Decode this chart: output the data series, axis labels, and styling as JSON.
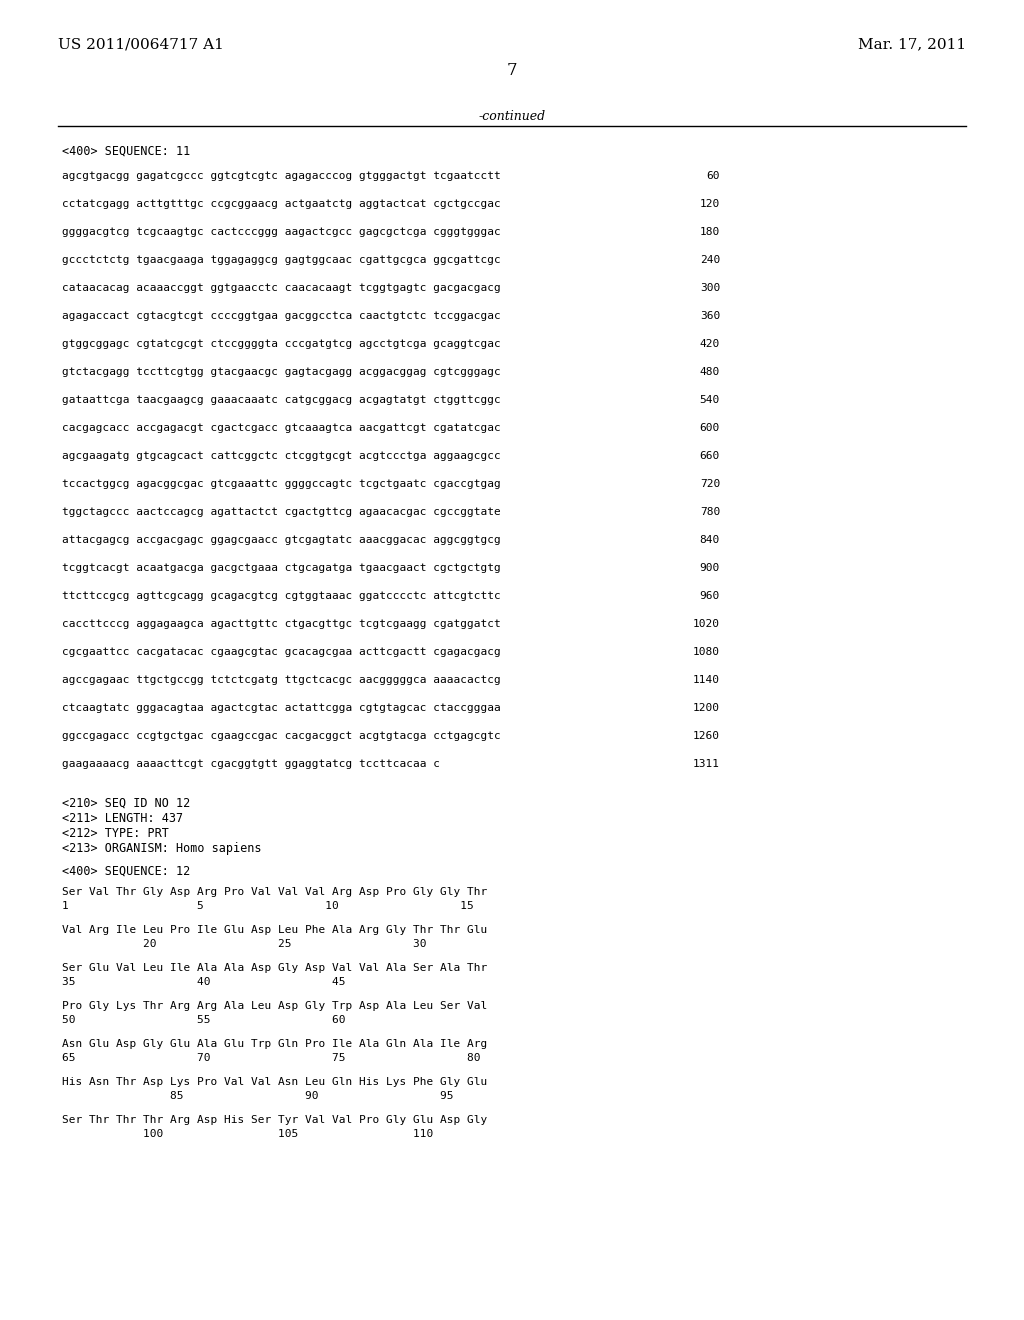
{
  "header_left": "US 2011/0064717 A1",
  "header_right": "Mar. 17, 2011",
  "page_number": "7",
  "continued_label": "-continued",
  "background_color": "#ffffff",
  "text_color": "#000000",
  "sequence_block": [
    "agcgtgacgg gagatcgccc ggtcgtcgtc agagacccog gtgggactgt tcgaatcctt    60",
    "cctatcgagg acttgtttgc ccgcggaacg actgaatctg aggtactcat cgctgccgac   120",
    "ggggacgtcg tcgcaagtgc cactcccggg aagactcgcc gagcgctcga cgggtgggac   180",
    "gccctctctg tgaacgaaga tggagaggcg gagtggcaac cgattgcgca ggcgattcgc   240",
    "cataacacag acaaaccggt ggtgaacctc caacacaagt tcggtgagtc gacgacgacg   300",
    "agagaccact cgtacgtcgt ccccggtgaa gacggcctca caactgtctc tccggacgac   360",
    "gtggcggagc cgtatcgcgt ctccggggta cccgatgtcg agcctgtcga gcaggtcgac   420",
    "gtctacgagg tccttcgtgg gtacgaacgc gagtacgagg acggacggag cgtcgggagc   480",
    "gataattcga taacgaagcg gaaacaaatc catgcggacg acgagtatgt ctggttcggc   540",
    "cacgagcacc accgagacgt cgactcgacc gtcaaagtca aacgattcgt cgatatcgac   600",
    "agcgaagatg gtgcagcact cattcggctc ctcggtgcgt acgtccctga aggaagcgcc   660",
    "tccactggcg agacggcgac gtcgaaattc ggggccagtc tcgctgaatc cgaccgtgag   720",
    "tggctagccc aactccagcg agattactct cgactgttcg agaacacgac cgccggtate   780",
    "attacgagcg accgacgagc ggagcgaacc gtcgagtatc aaacggacac aggcggtgcg   840",
    "tcggtcacgt acaatgacga gacgctgaaa ctgcagatga tgaacgaact cgctgctgtg   900",
    "ttcttccgcg agttcgcagg gcagacgtcg cgtggtaaac ggatcccctc attcgtcttc   960",
    "caccttcccg aggagaagca agacttgttc ctgacgttgc tcgtcgaagg cgatggatct  1020",
    "cgcgaattcc cacgatacac cgaagcgtac gcacagcgaa acttcgactt cgagacgacg  1080",
    "agccgagaac ttgctgccgg tctctcgatg ttgctcacgc aacgggggca aaaacactcg  1140",
    "ctcaagtatc gggacagtaa agactcgtac actattcgga cgtgtagcac ctaccgggaa  1200",
    "ggccgagacc ccgtgctgac cgaagccgac cacgacggct acgtgtacga cctgagcgtc  1260",
    "gaagaaaacg aaaacttcgt cgacggtgtt ggaggtatcg tccttcacaa c            1311"
  ],
  "seq12_info": [
    "<210> SEQ ID NO 12",
    "<211> LENGTH: 437",
    "<212> TYPE: PRT",
    "<213> ORGANISM: Homo sapiens"
  ],
  "seq12_aa": [
    "Ser Val Thr Gly Asp Arg Pro Val Val Val Arg Asp Pro Gly Gly Thr",
    "Val Arg Ile Leu Pro Ile Glu Asp Leu Phe Ala Arg Gly Thr Thr Glu",
    "Ser Glu Val Leu Ile Ala Ala Asp Gly Asp Val Val Ala Ser Ala Thr",
    "Pro Gly Lys Thr Arg Arg Ala Leu Asp Gly Trp Asp Ala Leu Ser Val",
    "Asn Glu Asp Gly Glu Ala Glu Trp Gln Pro Ile Ala Gln Ala Ile Arg",
    "His Asn Thr Asp Lys Pro Val Val Asn Leu Gln His Lys Phe Gly Glu",
    "Ser Thr Thr Thr Arg Asp His Ser Tyr Val Val Pro Gly Glu Asp Gly"
  ],
  "seq12_nums": [
    "1                   5                  10                  15",
    "            20                  25                  30",
    "35                  40                  45",
    "50                  55                  60",
    "65                  70                  75                  80",
    "                85                  90                  95",
    "            100                 105                 110"
  ]
}
